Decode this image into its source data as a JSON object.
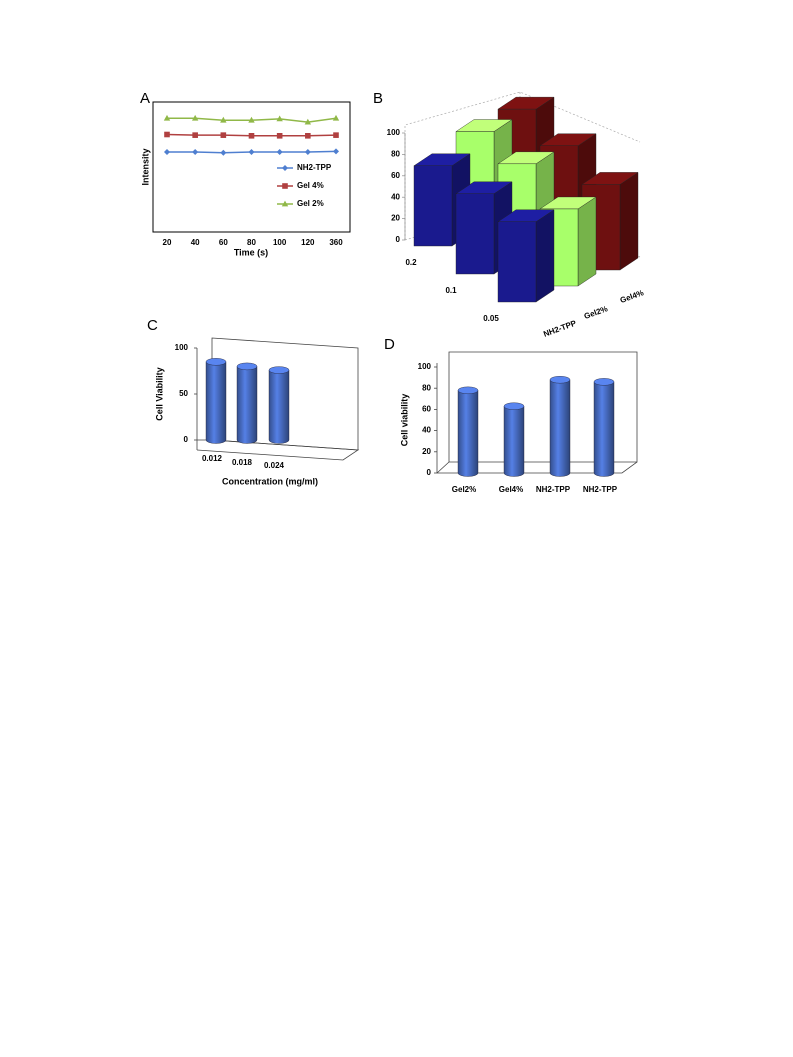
{
  "chart_data": [
    {
      "type": "line",
      "panel": "A",
      "xlabel": "Time (s)",
      "ylabel": "Intensity",
      "categories": [
        "20",
        "40",
        "60",
        "80",
        "100",
        "120",
        "360"
      ],
      "ylim": [
        0,
        100
      ],
      "legend": "right",
      "series": [
        {
          "name": "NH2-TPP",
          "color": "#4f7fd0",
          "values": [
            61.5,
            61.5,
            61,
            61.5,
            61.5,
            61.5,
            62
          ]
        },
        {
          "name": "Gel 4%",
          "color": "#b04040",
          "values": [
            75,
            74.5,
            74.5,
            74,
            74,
            74,
            74.5
          ]
        },
        {
          "name": "Gel 2%",
          "color": "#90b848",
          "values": [
            87.5,
            87.5,
            86,
            86,
            87,
            84.5,
            87.5
          ]
        }
      ]
    },
    {
      "type": "bar3d",
      "panel": "B",
      "categories": [
        "0.2",
        "0.1",
        "0.05"
      ],
      "ylim": [
        0,
        100
      ],
      "yticks": [
        0,
        20,
        40,
        60,
        80,
        100
      ],
      "series": [
        {
          "name": "NH2-TPP",
          "color": "#1a1a8e",
          "values": [
            75,
            75,
            75
          ]
        },
        {
          "name": "Gel2%",
          "color": "#a8ff6a",
          "values": [
            92,
            88,
            72
          ]
        },
        {
          "name": "Gel4%",
          "color": "#6e1010",
          "values": [
            98,
            90,
            80
          ]
        }
      ]
    },
    {
      "type": "cylinder",
      "panel": "C",
      "xlabel": "Concentration (mg/ml)",
      "ylabel": "Cell Viability",
      "categories": [
        "0.012",
        "0.018",
        "0.024"
      ],
      "values": [
        85,
        80,
        76
      ],
      "color": "#4a6fc8",
      "ylim": [
        0,
        100
      ],
      "yticks": [
        0,
        50,
        100
      ]
    },
    {
      "type": "cylinder",
      "panel": "D",
      "ylabel": "Cell viability",
      "categories": [
        "Gel2%",
        "Gel4%",
        "NH2-TPP",
        "NH2-TPP"
      ],
      "values": [
        78,
        63,
        88,
        86
      ],
      "color": "#4a6fc8",
      "ylim": [
        0,
        100
      ],
      "yticks": [
        0,
        20,
        40,
        60,
        80,
        100
      ]
    }
  ]
}
